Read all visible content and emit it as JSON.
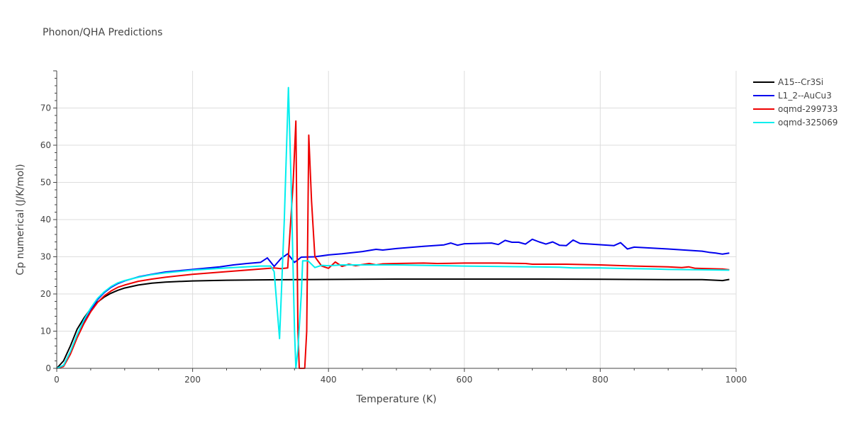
{
  "chart_data": {
    "type": "line",
    "title": "Phonon/QHA Predictions",
    "xlabel": "Temperature (K)",
    "ylabel": "Cp numerical (J/K/mol)",
    "xlim": [
      0,
      1000
    ],
    "ylim": [
      0,
      80
    ],
    "xticks": [
      0,
      200,
      400,
      600,
      800,
      1000
    ],
    "yticks": [
      0,
      10,
      20,
      30,
      40,
      50,
      60,
      70
    ],
    "grid": true,
    "legend_position": "top-right",
    "series": [
      {
        "name": "A15--Cr3Si",
        "color": "#000000",
        "points": [
          [
            0,
            0
          ],
          [
            10,
            2
          ],
          [
            20,
            6
          ],
          [
            30,
            10.5
          ],
          [
            40,
            13.5
          ],
          [
            50,
            16
          ],
          [
            60,
            17.8
          ],
          [
            70,
            19.2
          ],
          [
            80,
            20.2
          ],
          [
            90,
            21
          ],
          [
            100,
            21.6
          ],
          [
            120,
            22.4
          ],
          [
            140,
            22.9
          ],
          [
            160,
            23.2
          ],
          [
            200,
            23.5
          ],
          [
            250,
            23.7
          ],
          [
            300,
            23.8
          ],
          [
            400,
            23.9
          ],
          [
            500,
            24
          ],
          [
            600,
            24
          ],
          [
            700,
            24
          ],
          [
            800,
            23.95
          ],
          [
            850,
            23.9
          ],
          [
            900,
            23.85
          ],
          [
            950,
            23.85
          ],
          [
            980,
            23.6
          ],
          [
            990,
            23.9
          ]
        ]
      },
      {
        "name": "L1_2--AuCu3",
        "color": "#0000ee",
        "points": [
          [
            0,
            0
          ],
          [
            10,
            0.8
          ],
          [
            20,
            4
          ],
          [
            30,
            8.5
          ],
          [
            40,
            12.5
          ],
          [
            50,
            15.8
          ],
          [
            60,
            18.5
          ],
          [
            70,
            20.4
          ],
          [
            80,
            21.8
          ],
          [
            90,
            22.8
          ],
          [
            100,
            23.5
          ],
          [
            120,
            24.6
          ],
          [
            140,
            25.3
          ],
          [
            160,
            25.9
          ],
          [
            200,
            26.6
          ],
          [
            240,
            27.3
          ],
          [
            260,
            27.8
          ],
          [
            280,
            28.2
          ],
          [
            300,
            28.5
          ],
          [
            310,
            29.7
          ],
          [
            320,
            27.4
          ],
          [
            330,
            29.5
          ],
          [
            340,
            30.8
          ],
          [
            350,
            28.5
          ],
          [
            360,
            29.9
          ],
          [
            380,
            30
          ],
          [
            400,
            30.5
          ],
          [
            420,
            30.8
          ],
          [
            450,
            31.4
          ],
          [
            470,
            32
          ],
          [
            480,
            31.8
          ],
          [
            500,
            32.2
          ],
          [
            540,
            32.8
          ],
          [
            570,
            33.2
          ],
          [
            580,
            33.7
          ],
          [
            590,
            33.1
          ],
          [
            600,
            33.5
          ],
          [
            640,
            33.7
          ],
          [
            650,
            33.3
          ],
          [
            660,
            34.4
          ],
          [
            670,
            33.9
          ],
          [
            680,
            33.9
          ],
          [
            690,
            33.4
          ],
          [
            700,
            34.7
          ],
          [
            710,
            34
          ],
          [
            720,
            33.4
          ],
          [
            730,
            34
          ],
          [
            740,
            33.1
          ],
          [
            750,
            33
          ],
          [
            760,
            34.5
          ],
          [
            770,
            33.6
          ],
          [
            820,
            33
          ],
          [
            830,
            33.8
          ],
          [
            840,
            32.1
          ],
          [
            850,
            32.6
          ],
          [
            900,
            32.1
          ],
          [
            950,
            31.5
          ],
          [
            960,
            31.2
          ],
          [
            970,
            31
          ],
          [
            980,
            30.7
          ],
          [
            990,
            31
          ]
        ]
      },
      {
        "name": "oqmd-299733",
        "color": "#ee0000",
        "points": [
          [
            0,
            0
          ],
          [
            10,
            0.5
          ],
          [
            20,
            3.8
          ],
          [
            30,
            8.2
          ],
          [
            40,
            12
          ],
          [
            50,
            15.2
          ],
          [
            60,
            17.7
          ],
          [
            70,
            19.5
          ],
          [
            80,
            20.8
          ],
          [
            90,
            21.8
          ],
          [
            100,
            22.4
          ],
          [
            120,
            23.4
          ],
          [
            140,
            24
          ],
          [
            160,
            24.5
          ],
          [
            200,
            25.3
          ],
          [
            250,
            26
          ],
          [
            300,
            26.7
          ],
          [
            320,
            27
          ],
          [
            330,
            26.8
          ],
          [
            340,
            27
          ],
          [
            348,
            50
          ],
          [
            352,
            66.5
          ],
          [
            355,
            10
          ],
          [
            357,
            0
          ],
          [
            365,
            0
          ],
          [
            368,
            10
          ],
          [
            371,
            62.7
          ],
          [
            375,
            45
          ],
          [
            380,
            30
          ],
          [
            390,
            27.5
          ],
          [
            400,
            26.9
          ],
          [
            410,
            28.6
          ],
          [
            420,
            27.4
          ],
          [
            430,
            28
          ],
          [
            440,
            27.6
          ],
          [
            460,
            28.2
          ],
          [
            470,
            27.8
          ],
          [
            480,
            28.1
          ],
          [
            500,
            28.2
          ],
          [
            540,
            28.3
          ],
          [
            560,
            28.2
          ],
          [
            600,
            28.3
          ],
          [
            650,
            28.3
          ],
          [
            690,
            28.2
          ],
          [
            700,
            28
          ],
          [
            750,
            28
          ],
          [
            800,
            27.8
          ],
          [
            850,
            27.5
          ],
          [
            900,
            27.3
          ],
          [
            920,
            27.1
          ],
          [
            930,
            27.3
          ],
          [
            940,
            26.9
          ],
          [
            980,
            26.7
          ],
          [
            990,
            26.5
          ]
        ]
      },
      {
        "name": "oqmd-325069",
        "color": "#00eeee",
        "points": [
          [
            0,
            0
          ],
          [
            10,
            0.8
          ],
          [
            20,
            4.5
          ],
          [
            30,
            9
          ],
          [
            40,
            13
          ],
          [
            50,
            16.2
          ],
          [
            60,
            18.8
          ],
          [
            70,
            20.6
          ],
          [
            80,
            22
          ],
          [
            90,
            23
          ],
          [
            100,
            23.6
          ],
          [
            120,
            24.5
          ],
          [
            140,
            25.2
          ],
          [
            160,
            25.7
          ],
          [
            200,
            26.4
          ],
          [
            250,
            27
          ],
          [
            300,
            27.5
          ],
          [
            315,
            27.5
          ],
          [
            320,
            26
          ],
          [
            328,
            8
          ],
          [
            335,
            40
          ],
          [
            341,
            75.5
          ],
          [
            345,
            50
          ],
          [
            350,
            10
          ],
          [
            352,
            0
          ],
          [
            355,
            5
          ],
          [
            360,
            20
          ],
          [
            362,
            28.9
          ],
          [
            370,
            28.9
          ],
          [
            380,
            27.1
          ],
          [
            390,
            27.7
          ],
          [
            400,
            27.6
          ],
          [
            420,
            27.8
          ],
          [
            450,
            27.8
          ],
          [
            500,
            27.8
          ],
          [
            600,
            27.5
          ],
          [
            700,
            27.3
          ],
          [
            740,
            27.2
          ],
          [
            760,
            27
          ],
          [
            800,
            27
          ],
          [
            850,
            26.8
          ],
          [
            880,
            26.7
          ],
          [
            900,
            26.6
          ],
          [
            950,
            26.5
          ],
          [
            990,
            26.4
          ]
        ]
      }
    ]
  }
}
